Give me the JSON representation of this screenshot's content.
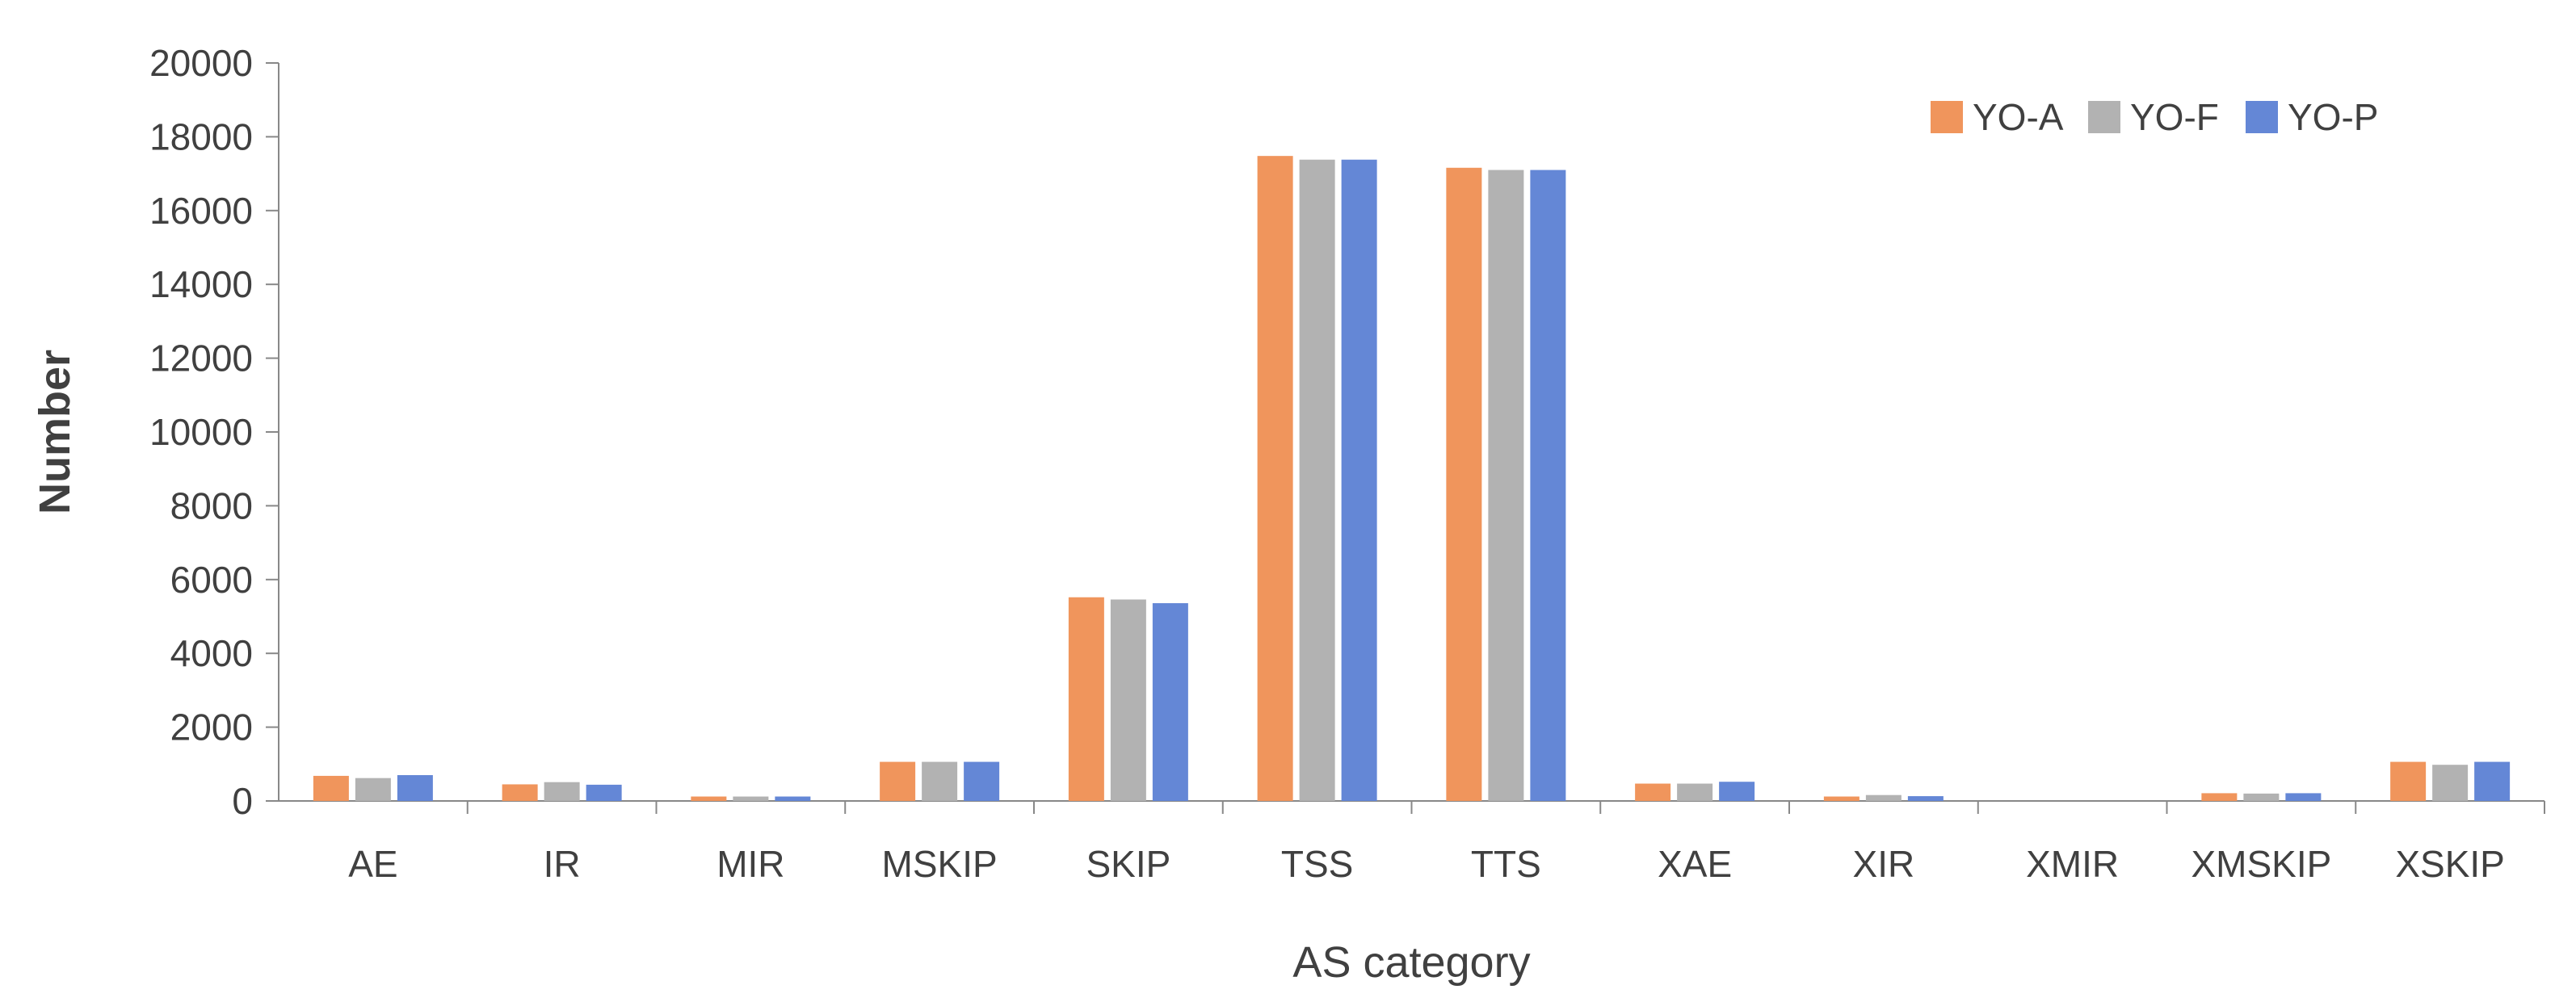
{
  "chart_data": {
    "type": "bar",
    "title": "",
    "xlabel": "AS category",
    "ylabel": "Number",
    "ylim": [
      0,
      20000
    ],
    "yticks": [
      0,
      2000,
      4000,
      6000,
      8000,
      10000,
      12000,
      14000,
      16000,
      18000,
      20000
    ],
    "grid": false,
    "legend_position": "top-right",
    "categories": [
      "AE",
      "IR",
      "MIR",
      "MSKIP",
      "SKIP",
      "TSS",
      "TTS",
      "XAE",
      "XIR",
      "XMIR",
      "XMSKIP",
      "XSKIP"
    ],
    "series": [
      {
        "name": "YO-A",
        "color": "#F0955C",
        "values": [
          680,
          450,
          120,
          1060,
          5520,
          17480,
          17160,
          470,
          120,
          0,
          210,
          1060
        ]
      },
      {
        "name": "YO-F",
        "color": "#B2B2B2",
        "values": [
          620,
          510,
          120,
          1060,
          5460,
          17380,
          17100,
          470,
          160,
          0,
          200,
          980
        ]
      },
      {
        "name": "YO-P",
        "color": "#6487D6",
        "values": [
          700,
          440,
          120,
          1060,
          5360,
          17380,
          17100,
          520,
          130,
          0,
          210,
          1060
        ]
      }
    ]
  }
}
